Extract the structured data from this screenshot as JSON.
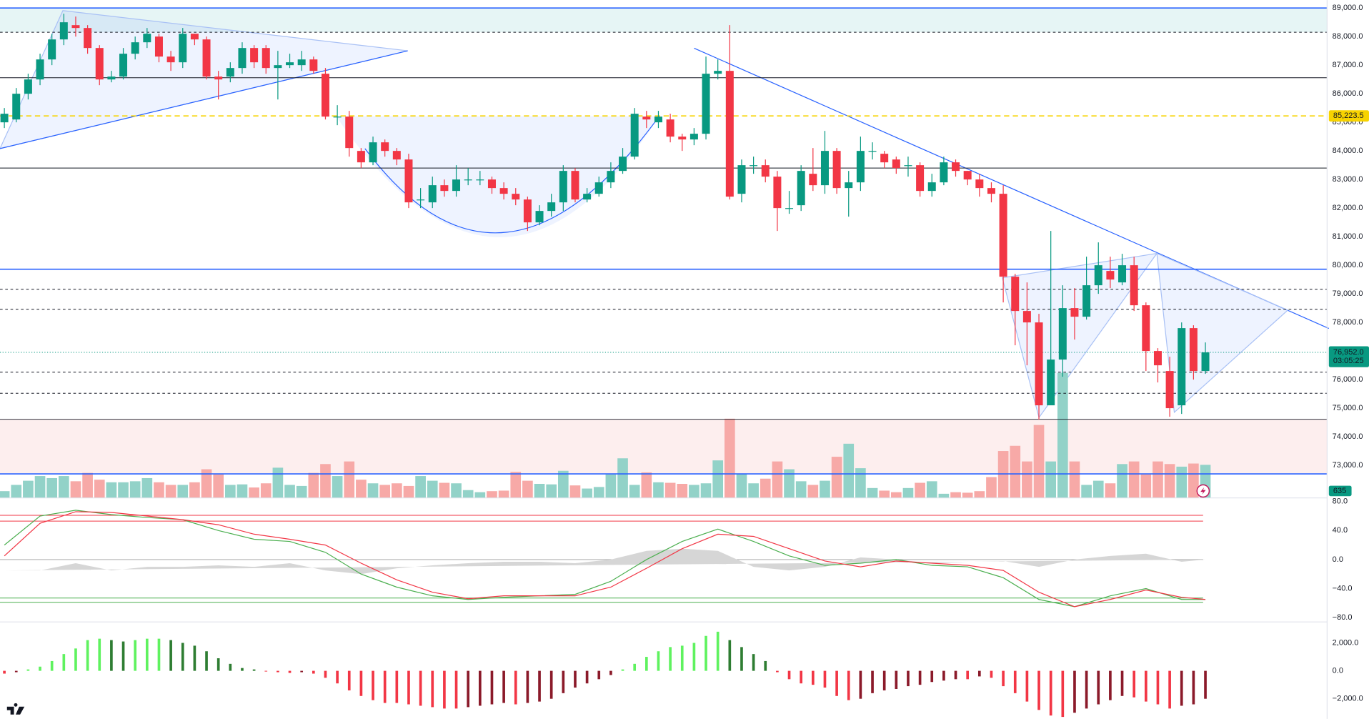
{
  "chart_data": [
    {
      "type": "candlestick",
      "open": [
        85000,
        85100,
        86000,
        86500,
        87200,
        87900,
        88400,
        88300,
        87600,
        86500,
        86600,
        87400,
        87800,
        88000,
        87300,
        87100,
        88100,
        87900,
        86600,
        86600,
        86900,
        87600,
        87600,
        86900,
        87000,
        87000,
        87200,
        86700,
        85200,
        85200,
        84000,
        83600,
        84300,
        84000,
        83700,
        82300,
        82200,
        82800,
        82600,
        83000,
        83000,
        83000,
        82700,
        82500,
        82300,
        81500,
        81900,
        82200,
        83300,
        82300,
        82500,
        82900,
        83300,
        83800,
        85200,
        85000,
        85100,
        84500,
        84400,
        84600,
        86700,
        86800,
        82500,
        83500,
        83500,
        83100,
        82000,
        82100,
        83200,
        82800,
        84000,
        82700,
        82900,
        84000,
        83900,
        83700,
        83500,
        83500,
        82600,
        82900,
        83600,
        83300,
        83000,
        82700,
        82500,
        79600,
        78400,
        78000,
        75100,
        76700,
        78500,
        78200,
        79300,
        79800,
        79400,
        80000,
        78600,
        77000,
        76300,
        75100,
        77800,
        76300
      ],
      "high": [
        85500,
        86200,
        86700,
        87400,
        88100,
        88800,
        88700,
        88400,
        87700,
        86800,
        87600,
        88000,
        88300,
        88100,
        87500,
        88300,
        88100,
        88000,
        86800,
        87100,
        87800,
        87700,
        87700,
        87500,
        87400,
        87500,
        87300,
        86900,
        85600,
        85400,
        84100,
        84500,
        84400,
        84100,
        83900,
        82700,
        83100,
        83000,
        83500,
        83400,
        83300,
        83100,
        82900,
        82700,
        82400,
        82100,
        82500,
        83500,
        83400,
        82700,
        83100,
        83600,
        84100,
        85500,
        85400,
        85400,
        85300,
        84600,
        84800,
        87300,
        87200,
        88400,
        83700,
        83800,
        83700,
        83300,
        82600,
        83500,
        84100,
        84700,
        84100,
        83300,
        84500,
        84300,
        84000,
        83800,
        83800,
        83600,
        83200,
        83800,
        83700,
        83300,
        83200,
        82900,
        82800,
        79700,
        79400,
        78300,
        81200,
        79300,
        79200,
        80300,
        80800,
        80300,
        80400,
        80300,
        78700,
        77100,
        76800,
        78000,
        77900,
        77300
      ],
      "low": [
        84800,
        85000,
        85800,
        86300,
        87000,
        87700,
        88000,
        87400,
        86300,
        86400,
        86500,
        87200,
        87600,
        87100,
        86800,
        86900,
        87700,
        86500,
        85800,
        86400,
        86700,
        86900,
        86700,
        85800,
        86900,
        86800,
        86700,
        85100,
        84900,
        83800,
        83400,
        83500,
        83800,
        83500,
        82000,
        82000,
        82000,
        82400,
        82400,
        82800,
        82800,
        82500,
        82300,
        82100,
        81200,
        81400,
        81700,
        81900,
        82200,
        82200,
        82400,
        82700,
        83200,
        83700,
        84800,
        84800,
        84300,
        84000,
        84200,
        84400,
        86500,
        82300,
        82200,
        83200,
        82900,
        81200,
        81800,
        81900,
        82600,
        82500,
        82500,
        81700,
        82600,
        83700,
        83400,
        83200,
        83100,
        82400,
        82400,
        82800,
        83100,
        82800,
        82400,
        82200,
        78700,
        77200,
        76500,
        74600,
        75200,
        76100,
        77400,
        78100,
        79000,
        79200,
        79300,
        78400,
        76300,
        75900,
        74700,
        74800,
        76000,
        76200
      ],
      "close": [
        85300,
        86000,
        86500,
        87200,
        87900,
        88500,
        88300,
        87600,
        86500,
        86600,
        87400,
        87800,
        88100,
        87300,
        87100,
        88100,
        87900,
        86600,
        86500,
        86900,
        87600,
        87100,
        86900,
        87000,
        87100,
        87200,
        86800,
        85200,
        85200,
        84100,
        83600,
        84300,
        84000,
        83700,
        82200,
        82300,
        82800,
        82600,
        83000,
        83000,
        83000,
        82700,
        82500,
        82300,
        81500,
        81900,
        82200,
        83300,
        82300,
        82500,
        82900,
        83300,
        83800,
        85300,
        85100,
        85200,
        84500,
        84400,
        84600,
        86700,
        86800,
        82400,
        83500,
        83500,
        83100,
        82000,
        82000,
        83300,
        82800,
        84000,
        82700,
        82900,
        84000,
        84000,
        83600,
        83400,
        83500,
        82600,
        82900,
        83600,
        83300,
        83000,
        82700,
        82500,
        79600,
        78400,
        78000,
        75100,
        76700,
        78500,
        78200,
        79300,
        80000,
        79500,
        80000,
        78600,
        77000,
        76500,
        75000,
        77800,
        76300,
        76952
      ],
      "volume": [
        130,
        250,
        330,
        420,
        380,
        420,
        320,
        480,
        350,
        300,
        300,
        320,
        380,
        300,
        250,
        250,
        300,
        550,
        450,
        250,
        260,
        200,
        280,
        580,
        250,
        230,
        480,
        650,
        420,
        700,
        350,
        280,
        250,
        280,
        230,
        420,
        330,
        290,
        280,
        150,
        110,
        130,
        140,
        500,
        330,
        270,
        260,
        520,
        240,
        180,
        210,
        450,
        760,
        250,
        490,
        300,
        290,
        270,
        250,
        280,
        720,
        1520,
        460,
        280,
        370,
        700,
        550,
        320,
        250,
        330,
        790,
        1040,
        570,
        190,
        140,
        110,
        190,
        290,
        320,
        80,
        110,
        100,
        130,
        400,
        900,
        1000,
        700,
        1400,
        700,
        2400,
        700,
        250,
        330,
        280,
        650,
        700,
        450,
        700,
        650,
        600,
        660,
        635
      ],
      "up_color": "#089981",
      "down_color": "#f23645",
      "volume_up_color": "#92d2c8",
      "volume_down_color": "#f7a9a7",
      "ylim": [
        71860,
        89000
      ],
      "volume_ylim": [
        0,
        9400
      ],
      "yticks": [
        {
          "value": 89000,
          "label": "89,000.0"
        },
        {
          "value": 88000,
          "label": "88,000.0"
        },
        {
          "value": 87000,
          "label": "87,000.0"
        },
        {
          "value": 86000,
          "label": "86,000.0"
        },
        {
          "value": 85000,
          "label": "85,000.0"
        },
        {
          "value": 84000,
          "label": "84,000.0"
        },
        {
          "value": 83000,
          "label": "83,000.0"
        },
        {
          "value": 82000,
          "label": "82,000.0"
        },
        {
          "value": 81000,
          "label": "81,000.0"
        },
        {
          "value": 80000,
          "label": "80,000.0"
        },
        {
          "value": 79000,
          "label": "79,000.0"
        },
        {
          "value": 78000,
          "label": "78,000.0"
        },
        {
          "value": 77000,
          "label": "77,000.0"
        },
        {
          "value": 76000,
          "label": "76,000.0"
        },
        {
          "value": 75000,
          "label": "75,000.0"
        },
        {
          "value": 74000,
          "label": "74,000.0"
        },
        {
          "value": 73000,
          "label": "73,000.0"
        }
      ],
      "zones": [
        {
          "from": 88150,
          "to": 89000,
          "color": "#e6f5f5"
        },
        {
          "from": 72700,
          "to": 74610,
          "color": "#fdeeee"
        }
      ],
      "levels": [
        {
          "value": 89000,
          "style": "solid",
          "color": "#2962ff"
        },
        {
          "value": 88150,
          "style": "dashed",
          "color": "#131722"
        },
        {
          "value": 86560,
          "style": "solid",
          "color": "#131722"
        },
        {
          "value": 83400,
          "style": "solid",
          "color": "#131722"
        },
        {
          "value": 79860,
          "style": "solid",
          "color": "#2962ff"
        },
        {
          "value": 79160,
          "style": "dashed",
          "color": "#131722"
        },
        {
          "value": 78460,
          "style": "dashed",
          "color": "#131722"
        },
        {
          "value": 76260,
          "style": "dashed",
          "color": "#131722"
        },
        {
          "value": 75520,
          "style": "dashed",
          "color": "#131722"
        },
        {
          "value": 74610,
          "style": "solid",
          "color": "#131722"
        },
        {
          "value": 72700,
          "style": "solid",
          "color": "#2962ff"
        }
      ],
      "marked_price": {
        "value": 85223.5,
        "label": "85,223.5",
        "color": "#f7d300"
      },
      "last_price": {
        "value": 76952,
        "label": "76,952.0",
        "countdown": "03:05:25",
        "color": "#089981"
      }
    },
    {
      "type": "line",
      "x": [
        0,
        3,
        6,
        9,
        12,
        15,
        18,
        21,
        24,
        27,
        30,
        33,
        36,
        39,
        42,
        45,
        48,
        51,
        54,
        57,
        60,
        63,
        66,
        69,
        72,
        75,
        78,
        81,
        84,
        87,
        90,
        93,
        96,
        99,
        101
      ],
      "xlim": [
        0,
        101
      ],
      "series": [
        {
          "color": "#4caf50",
          "values": [
            20,
            60,
            68,
            62,
            58,
            55,
            40,
            28,
            25,
            10,
            -20,
            -38,
            -50,
            -55,
            -52,
            -50,
            -48,
            -30,
            0,
            25,
            42,
            25,
            5,
            -8,
            -5,
            0,
            -8,
            -10,
            -25,
            -55,
            -65,
            -50,
            -40,
            -55,
            -55
          ]
        },
        {
          "color": "#f23645",
          "values": [
            5,
            50,
            66,
            65,
            60,
            55,
            48,
            35,
            28,
            20,
            -5,
            -28,
            -45,
            -54,
            -50,
            -50,
            -50,
            -38,
            -12,
            15,
            35,
            32,
            15,
            -2,
            -10,
            -2,
            -5,
            -8,
            -15,
            -45,
            -65,
            -55,
            -42,
            -52,
            -55
          ]
        }
      ],
      "histogram": {
        "color": "#d6d6d6",
        "values": [
          -15,
          -15,
          -5,
          -15,
          -10,
          -10,
          -8,
          -10,
          -5,
          -15,
          -20,
          -12,
          -8,
          -5,
          -3,
          -3,
          -5,
          0,
          12,
          15,
          12,
          -10,
          -15,
          -10,
          3,
          0,
          -5,
          -3,
          -2,
          -10,
          0,
          5,
          8,
          -3,
          0
        ]
      },
      "levels": [
        {
          "value": 61,
          "color": "#f23645"
        },
        {
          "value": 53,
          "color": "#f23645"
        },
        {
          "value": -53,
          "color": "#4caf50"
        },
        {
          "value": -59,
          "color": "#4caf50"
        },
        {
          "value": 0,
          "color": "#9e9e9e"
        }
      ],
      "ylim": [
        -86,
        85
      ],
      "yticks": [
        {
          "value": 80,
          "label": "80.0"
        },
        {
          "value": 40,
          "label": "40.0"
        },
        {
          "value": 0,
          "label": "0.0"
        },
        {
          "value": -40,
          "label": "−40.0"
        },
        {
          "value": -80,
          "label": "−80.0"
        }
      ]
    },
    {
      "type": "bar",
      "values": [
        -200,
        -100,
        100,
        300,
        700,
        1200,
        1600,
        2200,
        2300,
        2200,
        2100,
        2200,
        2300,
        2300,
        2200,
        2000,
        1800,
        1400,
        900,
        500,
        200,
        100,
        -50,
        -100,
        -150,
        -100,
        -200,
        -500,
        -900,
        -1400,
        -1800,
        -2100,
        -2300,
        -2300,
        -2400,
        -2500,
        -2600,
        -2700,
        -2700,
        -2600,
        -2500,
        -2400,
        -2300,
        -2400,
        -2300,
        -2200,
        -2000,
        -1600,
        -1200,
        -900,
        -600,
        -300,
        100,
        500,
        1000,
        1400,
        1700,
        1800,
        2000,
        2500,
        2800,
        2200,
        1700,
        1200,
        700,
        -100,
        -600,
        -900,
        -1000,
        -1200,
        -1800,
        -2100,
        -2000,
        -1600,
        -1400,
        -1300,
        -1100,
        -1000,
        -800,
        -700,
        -600,
        -600,
        -400,
        -500,
        -1100,
        -1600,
        -2200,
        -2800,
        -3200,
        -3300,
        -3000,
        -2700,
        -2400,
        -2100,
        -1800,
        -1900,
        -2200,
        -2400,
        -2700,
        -2500,
        -2400,
        -2000
      ],
      "colors": {
        "up_rising": "#5ff25f",
        "up_falling": "#2e7d32",
        "down_falling": "#f23645",
        "down_rising": "#8b1a2a"
      },
      "ylim": [
        -3440,
        3500
      ],
      "yticks": [
        {
          "value": 2000,
          "label": "2,000.0"
        },
        {
          "value": 0,
          "label": "0.0"
        },
        {
          "value": -2000,
          "label": "−2,000.0"
        }
      ]
    }
  ]
}
